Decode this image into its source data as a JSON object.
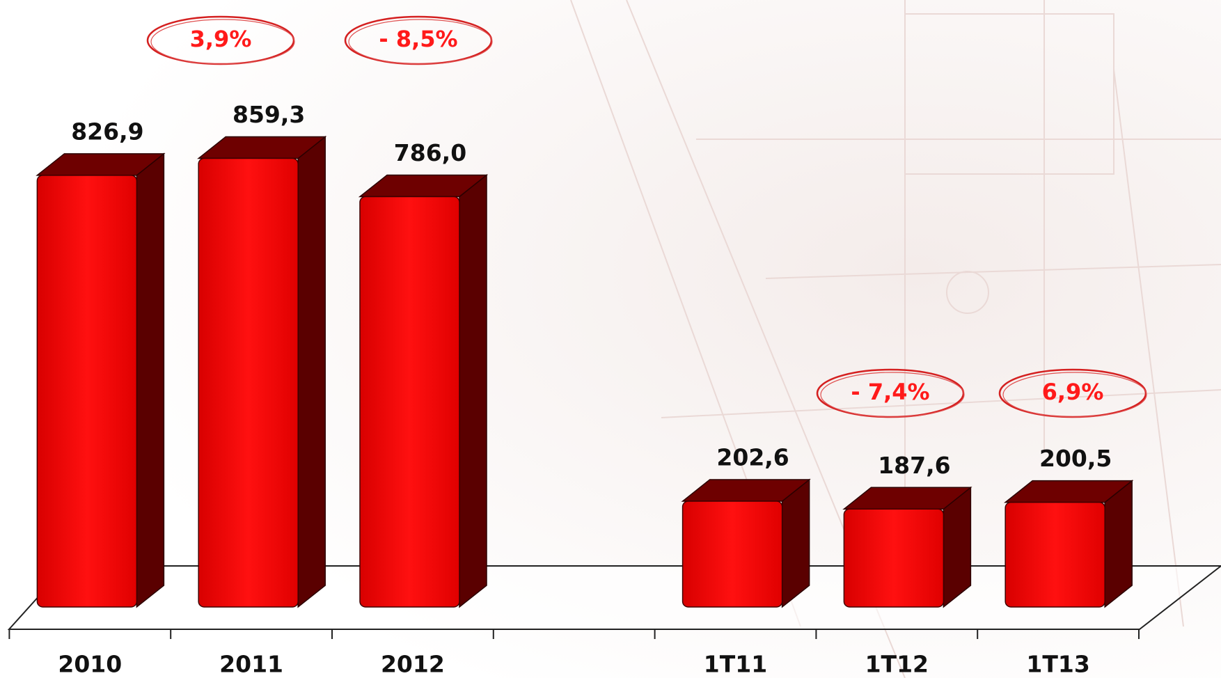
{
  "chart_data": {
    "type": "bar",
    "categories": [
      "2010",
      "2011",
      "2012",
      null,
      "1T11",
      "1T12",
      "1T13"
    ],
    "values": [
      826.9,
      859.3,
      786.0,
      null,
      202.6,
      187.6,
      200.5
    ],
    "value_labels": [
      "826,9",
      "859,3",
      "786,0",
      null,
      "202,6",
      "187,6",
      "200,5"
    ],
    "color": "#ff0000",
    "ylim": [
      0,
      1000
    ],
    "annotations": [
      "3,9%",
      "- 8,5%",
      "- 7,4%",
      "6,9%"
    ]
  }
}
